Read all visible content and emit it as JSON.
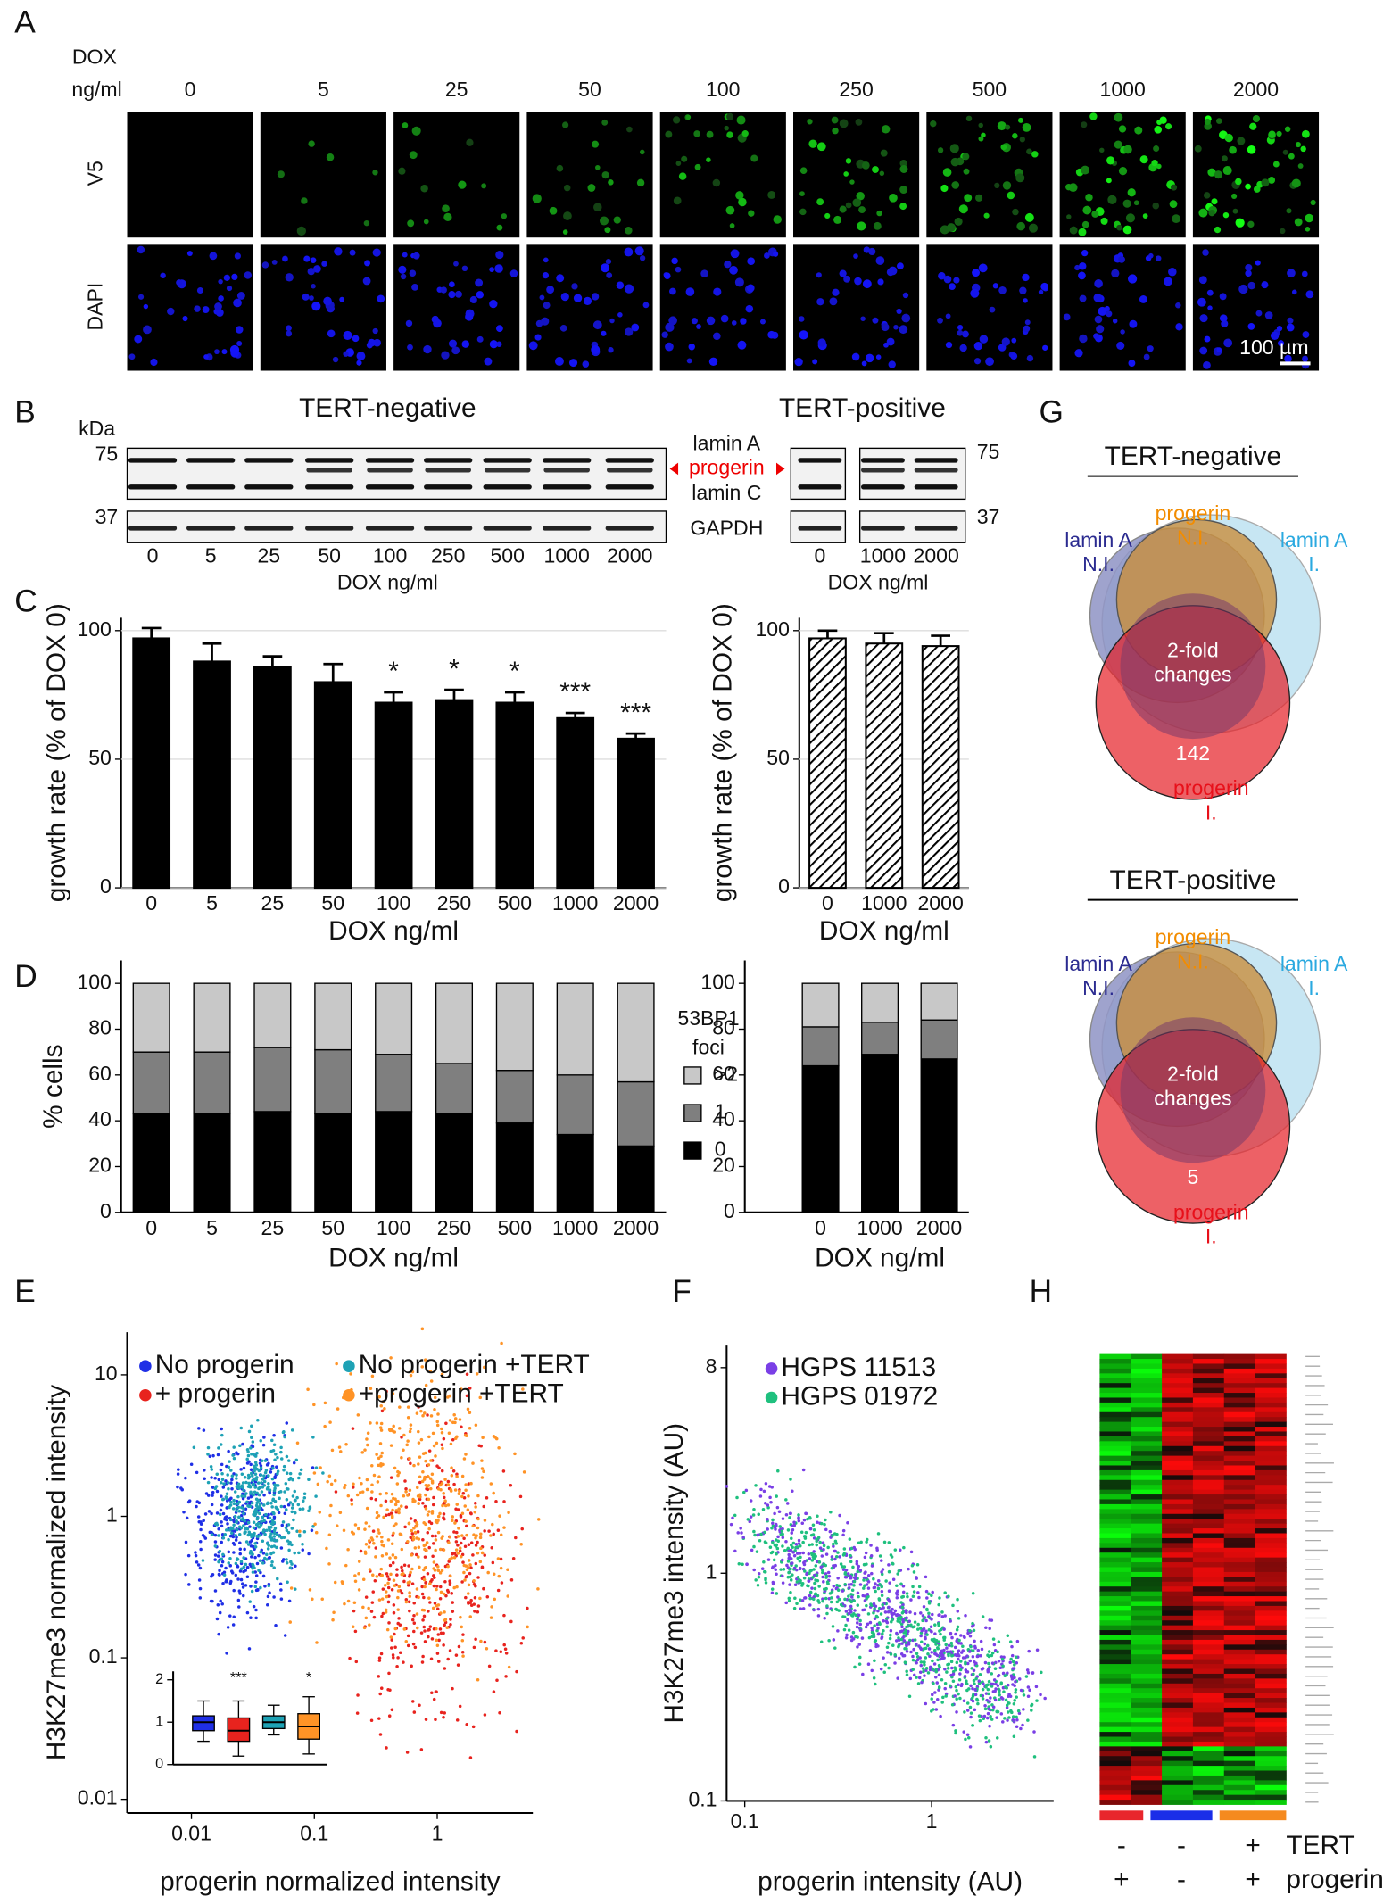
{
  "panel_labels": {
    "a": "A",
    "b": "B",
    "c": "C",
    "d": "D",
    "e": "E",
    "f": "F",
    "g": "G",
    "h": "H"
  },
  "panel_a": {
    "dox_label": "DOX",
    "unit_label": "ng/ml",
    "doses": [
      "0",
      "5",
      "25",
      "50",
      "100",
      "250",
      "500",
      "1000",
      "2000"
    ],
    "rows": [
      "V5",
      "DAPI"
    ],
    "scale_bar": "100 µm"
  },
  "panel_b": {
    "kda_label": "kDa",
    "groups": [
      "TERT-negative",
      "TERT-positive"
    ],
    "mw_markers": [
      75,
      37
    ],
    "bands": [
      "lamin A",
      "progerin",
      "lamin C",
      "GAPDH"
    ],
    "lanes_negative": [
      "0",
      "5",
      "25",
      "50",
      "100",
      "250",
      "500",
      "1000",
      "2000"
    ],
    "lanes_positive": [
      "0",
      "1000",
      "2000"
    ],
    "x_label": "DOX ng/ml"
  },
  "chart_data": [
    {
      "type": "bar",
      "y_label": "growth rate (% of DOX 0)",
      "x_label": "DOX ng/ml",
      "color": "#000000",
      "grid": true,
      "categories": [
        "0",
        "5",
        "25",
        "50",
        "100",
        "250",
        "500",
        "1000",
        "2000"
      ],
      "values": [
        97,
        88,
        86,
        80,
        72,
        73,
        72,
        66,
        58
      ],
      "errors": [
        4,
        7,
        4,
        7,
        4,
        4,
        4,
        2,
        2
      ],
      "significance": [
        null,
        null,
        null,
        null,
        "*",
        "*",
        "*",
        "***",
        "***"
      ],
      "ylim": [
        0,
        105
      ],
      "yticks": [
        0,
        50,
        100
      ]
    },
    {
      "type": "bar",
      "y_label": "growth rate (% of DOX 0)",
      "x_label": "DOX ng/ml",
      "color": "#000000",
      "pattern": "hatched",
      "grid": true,
      "categories": [
        "0",
        "1000",
        "2000"
      ],
      "values": [
        97,
        95,
        94
      ],
      "errors": [
        3,
        4,
        4
      ],
      "ylim": [
        0,
        105
      ],
      "yticks": [
        0,
        50,
        100
      ]
    },
    {
      "type": "stacked_bar",
      "y_label": "% cells",
      "x_label": "DOX ng/ml",
      "legend_title": [
        "53BP1",
        "foci"
      ],
      "categories": [
        "0",
        "5",
        "25",
        "50",
        "100",
        "250",
        "500",
        "1000",
        "2000"
      ],
      "series": [
        {
          "name": "0",
          "color": "#000000",
          "values": [
            43,
            43,
            44,
            43,
            44,
            43,
            39,
            34,
            29
          ]
        },
        {
          "name": "1",
          "color": "#7f7f7f",
          "values": [
            27,
            27,
            28,
            28,
            25,
            22,
            23,
            26,
            28
          ]
        },
        {
          "name": ">2",
          "color": "#c8c8c8",
          "values": [
            30,
            30,
            28,
            29,
            31,
            35,
            38,
            40,
            43
          ]
        }
      ],
      "ylim": [
        0,
        110
      ],
      "yticks": [
        0,
        20,
        40,
        60,
        80,
        100
      ]
    },
    {
      "type": "stacked_bar",
      "x_label": "DOX ng/ml",
      "categories": [
        "0",
        "1000",
        "2000"
      ],
      "series": [
        {
          "color": "#000000",
          "values": [
            64,
            69,
            67
          ]
        },
        {
          "color": "#7f7f7f",
          "values": [
            17,
            14,
            17
          ]
        },
        {
          "color": "#c8c8c8",
          "values": [
            19,
            17,
            16
          ]
        }
      ],
      "ylim": [
        0,
        110
      ],
      "yticks": [
        0,
        20,
        40,
        60,
        80,
        100
      ]
    },
    {
      "type": "scatter",
      "x_label": "progerin normalized intensity",
      "y_label": "H3K27me3 normalized intensity",
      "xscale": "log",
      "yscale": "log",
      "series": [
        {
          "name": "No progerin",
          "color": "#1f2fe6"
        },
        {
          "name": "+ progerin",
          "color": "#e8231e"
        },
        {
          "name": "No progerin +TERT",
          "color": "#1ea2b5"
        },
        {
          "name": "+progerin +TERT",
          "color": "#ff9326"
        }
      ],
      "xlim": [
        0.003,
        6
      ],
      "xticks": [
        0.01,
        0.1,
        1
      ],
      "ylim": [
        0.008,
        20
      ],
      "yticks": [
        0.01,
        0.1,
        1,
        10
      ]
    },
    {
      "type": "box",
      "ylim": [
        0,
        2.2
      ],
      "yticks": [
        0,
        1,
        2
      ],
      "significance": [
        null,
        "***",
        null,
        "*"
      ],
      "series": [
        {
          "color": "#1f2fe6",
          "whisker_low": 0.55,
          "q1": 0.8,
          "median": 1.0,
          "q3": 1.15,
          "whisker_high": 1.5
        },
        {
          "color": "#e8231e",
          "whisker_low": 0.2,
          "q1": 0.55,
          "median": 0.8,
          "q3": 1.1,
          "whisker_high": 1.5
        },
        {
          "color": "#1ea2b5",
          "whisker_low": 0.7,
          "q1": 0.85,
          "median": 1.0,
          "q3": 1.15,
          "whisker_high": 1.4
        },
        {
          "color": "#ff9326",
          "whisker_low": 0.25,
          "q1": 0.6,
          "median": 0.9,
          "q3": 1.2,
          "whisker_high": 1.6
        }
      ]
    },
    {
      "type": "scatter",
      "x_label": "progerin intensity (AU)",
      "y_label": "H3K27me3 intensity (AU)",
      "xscale": "log",
      "yscale": "log",
      "series": [
        {
          "name": "HGPS 11513",
          "color": "#7a3fe6"
        },
        {
          "name": "HGPS 01972",
          "color": "#1fc07e"
        }
      ],
      "xlim": [
        0.08,
        4.5
      ],
      "xticks": [
        0.1,
        1
      ],
      "ylim": [
        0.1,
        10
      ],
      "yticks": [
        0.1,
        1,
        8
      ]
    }
  ],
  "panel_g": {
    "venns": [
      {
        "title": "TERT-negative",
        "lamin_a_ni": [
          "lamin A",
          "N.I."
        ],
        "progerin_ni": [
          "progerin",
          "N.I."
        ],
        "lamin_a_i": [
          "lamin A",
          "I."
        ],
        "center": [
          "2-fold",
          "changes"
        ],
        "count": 142,
        "progerin_i": [
          "progerin",
          "I."
        ]
      },
      {
        "title": "TERT-positive",
        "lamin_a_ni": [
          "lamin A",
          "N.I."
        ],
        "progerin_ni": [
          "progerin",
          "N.I."
        ],
        "lamin_a_i": [
          "lamin A",
          "I."
        ],
        "center": [
          "2-fold",
          "changes"
        ],
        "count": 5,
        "progerin_i": [
          "progerin",
          "I."
        ]
      }
    ]
  },
  "panel_h": {
    "rows": [
      {
        "label": "TERT",
        "signs": [
          "-",
          "-",
          "+"
        ]
      },
      {
        "label": "progerin",
        "signs": [
          "+",
          "-",
          "+"
        ]
      }
    ],
    "group_colors": [
      "#e8262c",
      "#1a2ee8",
      "#f58a1f"
    ]
  }
}
